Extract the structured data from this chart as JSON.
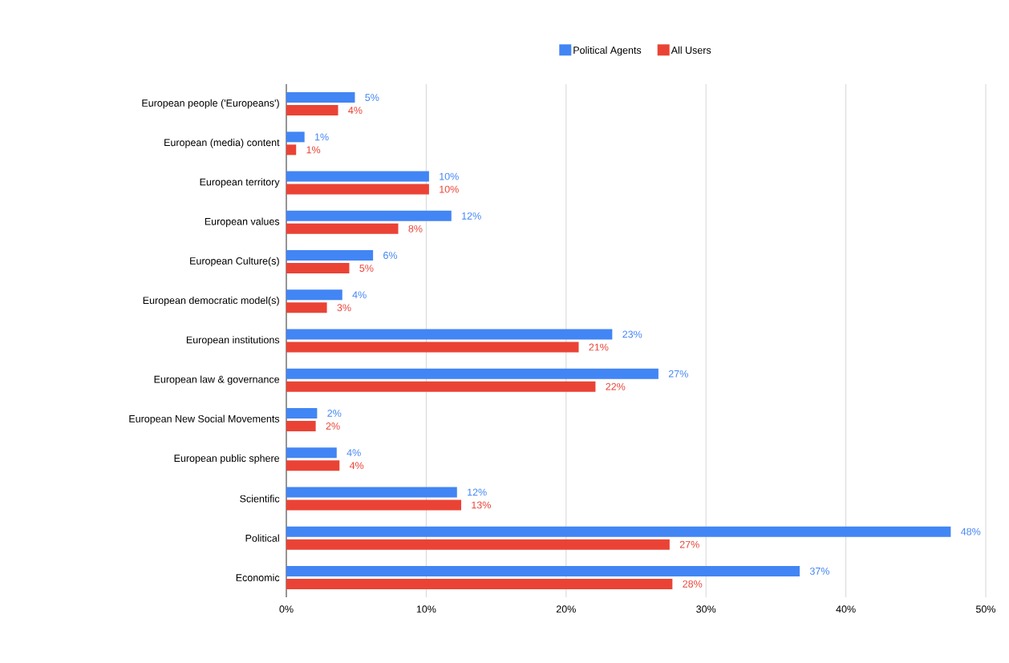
{
  "chart_data": {
    "type": "bar",
    "orientation": "horizontal",
    "categories": [
      "European people ('Europeans')",
      "European (media) content",
      "European territory",
      "European values",
      "European Culture(s)",
      "European democratic model(s)",
      "European institutions",
      "European law & governance",
      "European New Social Movements",
      "European public sphere",
      "Scientific",
      "Political",
      "Economic"
    ],
    "series": [
      {
        "name": "Political Agents",
        "color": "#4285f4",
        "values": [
          4.9,
          1.3,
          10.2,
          11.8,
          6.2,
          4.0,
          23.3,
          26.6,
          2.2,
          3.6,
          12.2,
          47.5,
          36.7
        ],
        "value_labels": [
          "5%",
          "1%",
          "10%",
          "12%",
          "6%",
          "4%",
          "23%",
          "27%",
          "2%",
          "4%",
          "12%",
          "48%",
          "37%"
        ]
      },
      {
        "name": "All Users",
        "color": "#ea4335",
        "values": [
          3.7,
          0.7,
          10.2,
          8.0,
          4.5,
          2.9,
          20.9,
          22.1,
          2.1,
          3.8,
          12.5,
          27.4,
          27.6
        ],
        "value_labels": [
          "4%",
          "1%",
          "10%",
          "8%",
          "5%",
          "3%",
          "21%",
          "22%",
          "2%",
          "4%",
          "13%",
          "27%",
          "28%"
        ]
      }
    ],
    "xlim": [
      0,
      50
    ],
    "xticks": [
      {
        "value": 0,
        "label": "0%"
      },
      {
        "value": 10,
        "label": "10%"
      },
      {
        "value": 20,
        "label": "20%"
      },
      {
        "value": 30,
        "label": "30%"
      },
      {
        "value": 40,
        "label": "40%"
      },
      {
        "value": 50,
        "label": "50%"
      }
    ],
    "grid": "x",
    "legend": "top"
  }
}
